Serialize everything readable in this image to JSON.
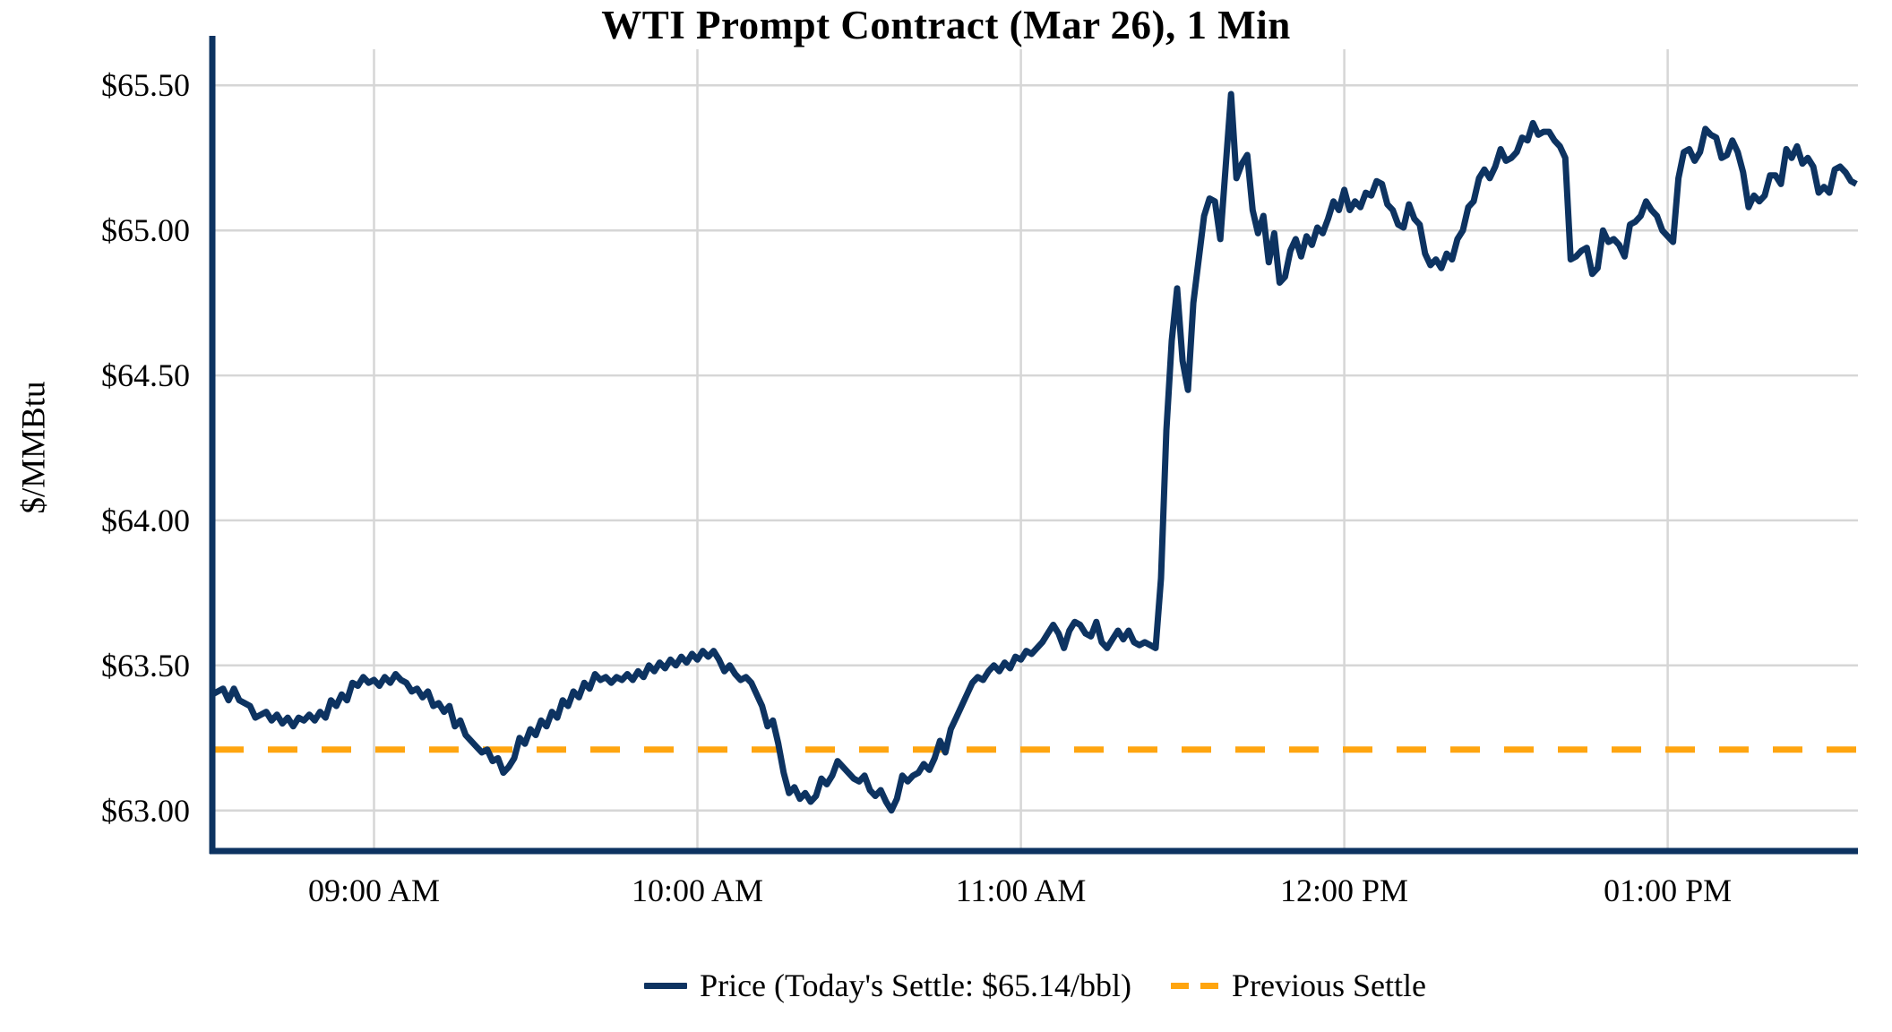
{
  "title": "WTI Prompt Contract (Mar 26), 1 Min",
  "colors": {
    "price_line": "#0d3361",
    "settle_line": "#ffa50f",
    "gridline": "#d6d6d6",
    "axis_spine": "#0d3361",
    "text": "#000000",
    "background": "#ffffff"
  },
  "chart_data": {
    "type": "line",
    "title": "WTI Prompt Contract (Mar 26), 1 Min",
    "xlabel": "",
    "ylabel": "$/MMBtu",
    "grid": true,
    "legend_position": "bottom",
    "y_ticks": [
      65.5,
      65.0,
      64.5,
      64.0,
      63.5,
      63.0
    ],
    "y_tick_labels": [
      "$65.50",
      "$65.00",
      "$64.50",
      "$64.00",
      "$63.50",
      "$63.00"
    ],
    "x_tick_labels": [
      "09:00 AM",
      "10:00 AM",
      "11:00 AM",
      "12:00 PM",
      "01:00 PM"
    ],
    "x_tick_minutes": [
      30,
      90,
      150,
      210,
      270
    ],
    "x_start_time": "08:30 AM",
    "x_end_time": "01:35 PM",
    "x_domain_minutes": [
      0,
      305.3
    ],
    "ylim": [
      62.86,
      65.64
    ],
    "previous_settle": 63.21,
    "todays_settle": 65.14,
    "legend": {
      "price_label": "Price (Today's Settle: $65.14/bbl)",
      "settle_label": "Previous Settle"
    },
    "series": [
      {
        "name": "Price",
        "style": "solid",
        "color": "#0d3361",
        "x_unit": "minutes from 08:30 AM, 1-minute interval",
        "values": [
          63.4,
          63.41,
          63.42,
          63.38,
          63.42,
          63.38,
          63.37,
          63.36,
          63.32,
          63.33,
          63.34,
          63.31,
          63.33,
          63.3,
          63.32,
          63.29,
          63.32,
          63.31,
          63.33,
          63.31,
          63.34,
          63.32,
          63.38,
          63.36,
          63.4,
          63.38,
          63.44,
          63.43,
          63.46,
          63.44,
          63.45,
          63.43,
          63.46,
          63.44,
          63.47,
          63.45,
          63.44,
          63.41,
          63.42,
          63.39,
          63.41,
          63.36,
          63.37,
          63.34,
          63.36,
          63.29,
          63.31,
          63.26,
          63.24,
          63.22,
          63.2,
          63.21,
          63.17,
          63.18,
          63.13,
          63.15,
          63.18,
          63.25,
          63.23,
          63.28,
          63.26,
          63.31,
          63.29,
          63.34,
          63.32,
          63.38,
          63.36,
          63.41,
          63.39,
          63.44,
          63.42,
          63.47,
          63.45,
          63.46,
          63.44,
          63.46,
          63.45,
          63.47,
          63.45,
          63.48,
          63.46,
          63.5,
          63.48,
          63.51,
          63.49,
          63.52,
          63.5,
          63.53,
          63.51,
          63.54,
          63.52,
          63.55,
          63.53,
          63.55,
          63.52,
          63.48,
          63.5,
          63.47,
          63.45,
          63.46,
          63.44,
          63.4,
          63.36,
          63.29,
          63.31,
          63.23,
          63.13,
          63.06,
          63.08,
          63.04,
          63.06,
          63.03,
          63.05,
          63.11,
          63.09,
          63.12,
          63.17,
          63.15,
          63.13,
          63.11,
          63.1,
          63.12,
          63.07,
          63.05,
          63.07,
          63.03,
          63.0,
          63.04,
          63.12,
          63.1,
          63.12,
          63.13,
          63.16,
          63.14,
          63.18,
          63.24,
          63.2,
          63.28,
          63.32,
          63.36,
          63.4,
          63.44,
          63.46,
          63.45,
          63.48,
          63.5,
          63.48,
          63.51,
          63.49,
          63.53,
          63.52,
          63.55,
          63.54,
          63.56,
          63.58,
          63.61,
          63.64,
          63.61,
          63.56,
          63.62,
          63.65,
          63.64,
          63.61,
          63.6,
          63.65,
          63.58,
          63.56,
          63.59,
          63.62,
          63.59,
          63.62,
          63.58,
          63.57,
          63.58,
          63.57,
          63.56,
          63.8,
          64.31,
          64.62,
          64.8,
          64.55,
          64.45,
          64.75,
          64.9,
          65.05,
          65.11,
          65.1,
          64.97,
          65.22,
          65.47,
          65.18,
          65.23,
          65.26,
          65.07,
          64.99,
          65.05,
          64.89,
          64.99,
          64.82,
          64.84,
          64.93,
          64.97,
          64.91,
          64.98,
          64.95,
          65.01,
          64.99,
          65.04,
          65.1,
          65.07,
          65.14,
          65.07,
          65.1,
          65.08,
          65.13,
          65.12,
          65.17,
          65.16,
          65.09,
          65.07,
          65.02,
          65.01,
          65.09,
          65.04,
          65.02,
          64.92,
          64.88,
          64.9,
          64.87,
          64.92,
          64.9,
          64.97,
          65.0,
          65.08,
          65.1,
          65.18,
          65.21,
          65.18,
          65.22,
          65.28,
          65.24,
          65.25,
          65.27,
          65.32,
          65.31,
          65.37,
          65.33,
          65.34,
          65.34,
          65.31,
          65.29,
          65.25,
          64.9,
          64.91,
          64.93,
          64.94,
          64.85,
          64.87,
          65.0,
          64.96,
          64.97,
          64.95,
          64.91,
          65.02,
          65.03,
          65.05,
          65.1,
          65.07,
          65.05,
          65.0,
          64.98,
          64.96,
          65.18,
          65.27,
          65.28,
          65.24,
          65.27,
          65.35,
          65.33,
          65.32,
          65.25,
          65.26,
          65.31,
          65.27,
          65.2,
          65.08,
          65.12,
          65.1,
          65.12,
          65.19,
          65.19,
          65.16,
          65.28,
          65.25,
          65.29,
          65.23,
          65.25,
          65.22,
          65.13,
          65.15,
          65.13,
          65.21,
          65.22,
          65.2,
          65.17,
          65.16
        ]
      },
      {
        "name": "Previous Settle",
        "style": "dashed",
        "color": "#ffa50f",
        "value": 63.21
      }
    ]
  }
}
